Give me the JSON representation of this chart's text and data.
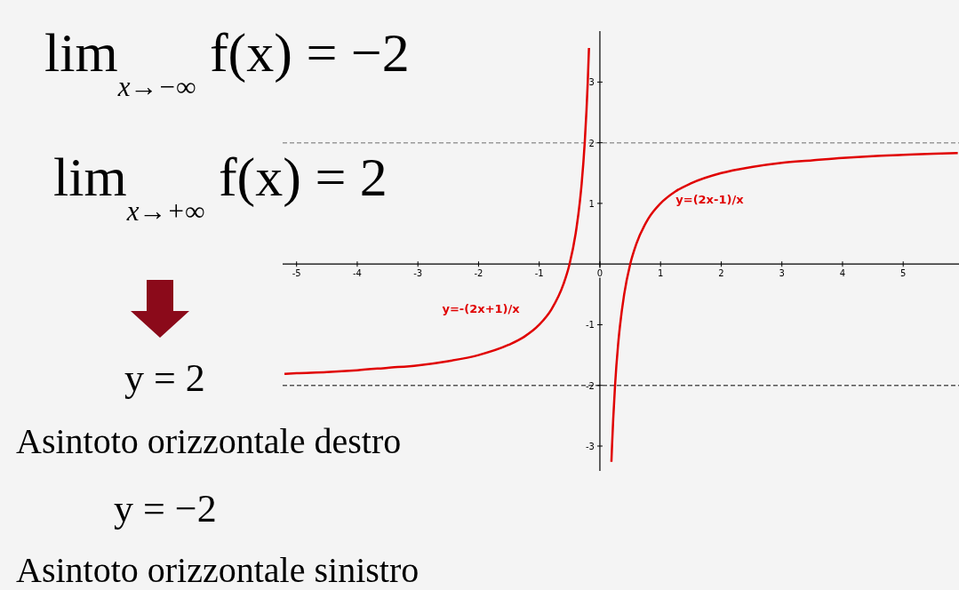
{
  "chart_data": {
    "type": "line",
    "annotations": [
      "lim$_{x→−∞}$ f(x) = −2",
      "lim$_{x→+∞}$ f(x) = 2",
      "y = 2",
      "Asintoto orizzontale destro",
      "y = −2",
      "Asintoto orizzontale sinistro"
    ],
    "xlim": [
      -5.23,
      5.92
    ],
    "ylim": [
      -3.41,
      3.84
    ],
    "xticks": [
      -5,
      -4,
      -3,
      -2,
      -1,
      0,
      1,
      2,
      3,
      4,
      5
    ],
    "yticks": [
      -3,
      -2,
      -1,
      1,
      2,
      3
    ],
    "grid": false,
    "legend": false,
    "marker": "none",
    "line_style": "solid",
    "ref_lines": [
      {
        "axis": "y",
        "value": 2,
        "color": "#999999",
        "line_style": "dashed"
      },
      {
        "axis": "y",
        "value": -2,
        "color": "#555555",
        "line_style": "dashed"
      }
    ],
    "series": [
      {
        "name": "y=-(2x+1)/x",
        "color": "#e00000",
        "x": [
          -5.2,
          -5,
          -4.5,
          -4,
          -3.5,
          -3,
          -2.5,
          -2,
          -1.5,
          -1.25,
          -1,
          -0.8,
          -0.6,
          -0.5,
          -0.4,
          -0.33,
          -0.3,
          -0.25,
          -0.22,
          -0.2,
          -0.18
        ],
        "values": [
          -1.81,
          -1.8,
          -1.78,
          -1.75,
          -1.71,
          -1.67,
          -1.6,
          -1.5,
          -1.33,
          -1.2,
          -1,
          -0.75,
          -0.33,
          0,
          0.5,
          1.03,
          1.33,
          2,
          2.55,
          3,
          3.56
        ]
      },
      {
        "name": "y=(2x-1)/x",
        "color": "#e00000",
        "x": [
          0.19,
          0.2,
          0.22,
          0.25,
          0.3,
          0.33,
          0.4,
          0.5,
          0.6,
          0.8,
          1,
          1.25,
          1.5,
          2,
          2.5,
          3,
          3.5,
          4,
          4.5,
          5,
          5.5,
          5.9
        ],
        "values": [
          -3.26,
          -3,
          -2.55,
          -2,
          -1.33,
          -1.03,
          -0.5,
          0,
          0.33,
          0.75,
          1,
          1.2,
          1.33,
          1.5,
          1.6,
          1.67,
          1.71,
          1.75,
          1.78,
          1.8,
          1.82,
          1.83
        ]
      }
    ]
  }
}
